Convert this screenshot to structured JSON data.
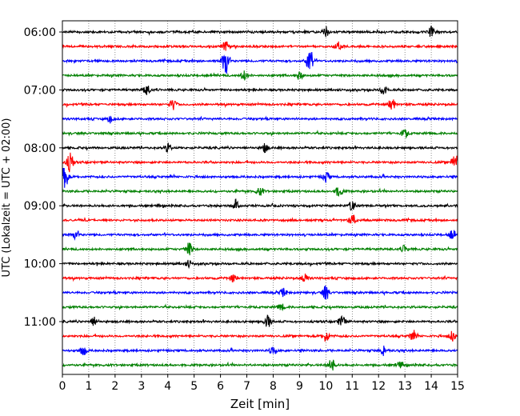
{
  "chart_data": {
    "type": "line",
    "title": "",
    "xlabel": "Zeit  [min]",
    "ylabel": "UTC (Lokalzeit = UTC + 02:00)",
    "xlim": [
      0,
      15
    ],
    "x_ticks": [
      "0",
      "1",
      "2",
      "3",
      "4",
      "5",
      "6",
      "7",
      "8",
      "9",
      "10",
      "11",
      "12",
      "13",
      "14",
      "15"
    ],
    "y_tick_labels": [
      "06:00",
      "07:00",
      "08:00",
      "09:00",
      "10:00",
      "11:00"
    ],
    "grid": "vertical dotted at each minute",
    "trace_interval_minutes": 15,
    "trace_start": "06:00",
    "trace_count": 24,
    "trace_colors": [
      "#000000",
      "#ff0000",
      "#0000ff",
      "#008000"
    ],
    "events": [
      {
        "trace": 0,
        "minute": 10.0,
        "amp": 0.3
      },
      {
        "trace": 0,
        "minute": 14.0,
        "amp": 0.35
      },
      {
        "trace": 1,
        "minute": 6.2,
        "amp": 0.35
      },
      {
        "trace": 1,
        "minute": 10.5,
        "amp": 0.3
      },
      {
        "trace": 2,
        "minute": 6.2,
        "amp": 1.0
      },
      {
        "trace": 2,
        "minute": 9.4,
        "amp": 0.85
      },
      {
        "trace": 3,
        "minute": 6.9,
        "amp": 0.3
      },
      {
        "trace": 3,
        "minute": 9.0,
        "amp": 0.25
      },
      {
        "trace": 4,
        "minute": 3.2,
        "amp": 0.35
      },
      {
        "trace": 4,
        "minute": 12.2,
        "amp": 0.3
      },
      {
        "trace": 5,
        "minute": 4.2,
        "amp": 0.3
      },
      {
        "trace": 5,
        "minute": 12.5,
        "amp": 0.4
      },
      {
        "trace": 6,
        "minute": 1.8,
        "amp": 0.2
      },
      {
        "trace": 7,
        "minute": 13.0,
        "amp": 0.25
      },
      {
        "trace": 8,
        "minute": 4.0,
        "amp": 0.25
      },
      {
        "trace": 8,
        "minute": 7.7,
        "amp": 0.25
      },
      {
        "trace": 9,
        "minute": 0.3,
        "amp": 0.6
      },
      {
        "trace": 9,
        "minute": 14.9,
        "amp": 0.5
      },
      {
        "trace": 10,
        "minute": 0.1,
        "amp": 0.7
      },
      {
        "trace": 10,
        "minute": 10.0,
        "amp": 0.3
      },
      {
        "trace": 11,
        "minute": 10.5,
        "amp": 0.35
      },
      {
        "trace": 11,
        "minute": 7.5,
        "amp": 0.25
      },
      {
        "trace": 12,
        "minute": 6.6,
        "amp": 0.4
      },
      {
        "trace": 12,
        "minute": 11.0,
        "amp": 0.3
      },
      {
        "trace": 13,
        "minute": 11.0,
        "amp": 0.4
      },
      {
        "trace": 14,
        "minute": 0.5,
        "amp": 0.3
      },
      {
        "trace": 14,
        "minute": 14.8,
        "amp": 0.3
      },
      {
        "trace": 15,
        "minute": 4.8,
        "amp": 0.45
      },
      {
        "trace": 15,
        "minute": 13.0,
        "amp": 0.25
      },
      {
        "trace": 16,
        "minute": 4.8,
        "amp": 0.2
      },
      {
        "trace": 17,
        "minute": 9.2,
        "amp": 0.3
      },
      {
        "trace": 17,
        "minute": 6.5,
        "amp": 0.25
      },
      {
        "trace": 18,
        "minute": 10.0,
        "amp": 0.45
      },
      {
        "trace": 18,
        "minute": 8.4,
        "amp": 0.25
      },
      {
        "trace": 19,
        "minute": 8.3,
        "amp": 0.2
      },
      {
        "trace": 20,
        "minute": 7.8,
        "amp": 0.4
      },
      {
        "trace": 20,
        "minute": 10.6,
        "amp": 0.35
      },
      {
        "trace": 20,
        "minute": 1.2,
        "amp": 0.3
      },
      {
        "trace": 21,
        "minute": 10.0,
        "amp": 0.35
      },
      {
        "trace": 21,
        "minute": 13.3,
        "amp": 0.3
      },
      {
        "trace": 21,
        "minute": 14.8,
        "amp": 0.3
      },
      {
        "trace": 22,
        "minute": 0.8,
        "amp": 0.3
      },
      {
        "trace": 22,
        "minute": 12.2,
        "amp": 0.3
      },
      {
        "trace": 22,
        "minute": 8.0,
        "amp": 0.25
      },
      {
        "trace": 23,
        "minute": 10.2,
        "amp": 0.45
      },
      {
        "trace": 23,
        "minute": 12.8,
        "amp": 0.2
      }
    ]
  }
}
